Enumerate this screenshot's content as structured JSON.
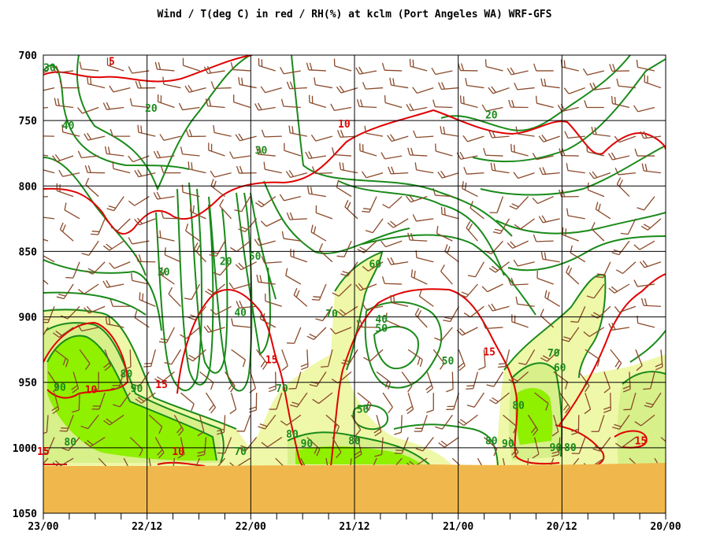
{
  "chart_data": {
    "type": "time-height cross section",
    "title": "Wind / T(deg C) in red / RH(%) at kclm (Port Angeles WA)  WRF-GFS",
    "y_axis": {
      "unit": "hPa",
      "range": [
        700,
        1050
      ],
      "ticks": [
        "700",
        "750",
        "800",
        "850",
        "900",
        "950",
        "1000",
        "1050"
      ]
    },
    "x_axis": {
      "direction": "time decreasing to the right",
      "range": [
        "23/00",
        "20/00"
      ],
      "ticks": [
        "23/00",
        "22/12",
        "22/00",
        "21/12",
        "21/00",
        "20/12",
        "20/00"
      ]
    },
    "grid": true,
    "colors": {
      "rh": "#1a8a1a",
      "temperature": "#e00000",
      "wind": "#8a4a2a",
      "rh_70_fill": "#eef8a8",
      "rh_80_fill": "#d7f08a",
      "rh_90_fill": "#8ff000",
      "ground": "#f0b84c"
    },
    "temperature_contours_degC": [
      5,
      10,
      15
    ],
    "temperature_labels": [
      {
        "text": "5",
        "time": 22.67,
        "p": 705
      },
      {
        "text": "10",
        "time": 21.55,
        "p": 753
      },
      {
        "text": "15",
        "time": 21.9,
        "p": 933
      },
      {
        "text": "10",
        "time": 22.77,
        "p": 956
      },
      {
        "text": "15",
        "time": 22.43,
        "p": 952
      },
      {
        "text": "15",
        "time": 20.85,
        "p": 927
      },
      {
        "text": "15",
        "time": 20.12,
        "p": 995
      },
      {
        "text": "15",
        "time": 23.0,
        "p": 1003
      },
      {
        "text": "10",
        "time": 22.35,
        "p": 1003
      }
    ],
    "rh_contours_pct": [
      20,
      30,
      40,
      50,
      60,
      70,
      80,
      90
    ],
    "rh_labels": [
      {
        "text": "30",
        "time": 22.97,
        "p": 710
      },
      {
        "text": "20",
        "time": 22.48,
        "p": 741
      },
      {
        "text": "20",
        "time": 20.84,
        "p": 746
      },
      {
        "text": "40",
        "time": 22.88,
        "p": 754
      },
      {
        "text": "30",
        "time": 21.95,
        "p": 773
      },
      {
        "text": "30",
        "time": 22.42,
        "p": 866
      },
      {
        "text": "20",
        "time": 22.12,
        "p": 858
      },
      {
        "text": "50",
        "time": 21.98,
        "p": 854
      },
      {
        "text": "60",
        "time": 21.4,
        "p": 860
      },
      {
        "text": "40",
        "time": 22.05,
        "p": 897
      },
      {
        "text": "70",
        "time": 21.61,
        "p": 898
      },
      {
        "text": "40",
        "time": 21.37,
        "p": 902
      },
      {
        "text": "50",
        "time": 21.37,
        "p": 909
      },
      {
        "text": "50",
        "time": 21.05,
        "p": 934
      },
      {
        "text": "60",
        "time": 20.51,
        "p": 939
      },
      {
        "text": "70",
        "time": 20.54,
        "p": 928
      },
      {
        "text": "80",
        "time": 22.6,
        "p": 944
      },
      {
        "text": "90",
        "time": 22.92,
        "p": 954
      },
      {
        "text": "90",
        "time": 22.55,
        "p": 955
      },
      {
        "text": "70",
        "time": 21.85,
        "p": 955
      },
      {
        "text": "80",
        "time": 20.71,
        "p": 968
      },
      {
        "text": "50",
        "time": 21.46,
        "p": 971
      },
      {
        "text": "80",
        "time": 21.8,
        "p": 990
      },
      {
        "text": "90",
        "time": 21.73,
        "p": 997
      },
      {
        "text": "80",
        "time": 21.5,
        "p": 995
      },
      {
        "text": "90",
        "time": 20.76,
        "p": 997
      },
      {
        "text": "80",
        "time": 20.84,
        "p": 995
      },
      {
        "text": "90",
        "time": 20.53,
        "p": 1000
      },
      {
        "text": "80",
        "time": 20.46,
        "p": 1000
      },
      {
        "text": "80",
        "time": 22.87,
        "p": 996
      },
      {
        "text": "70",
        "time": 22.05,
        "p": 1003
      }
    ],
    "wind_barbs_row_levels_hPa": [
      712,
      725,
      740,
      762,
      777,
      790,
      808,
      825,
      842,
      858,
      875,
      892,
      908,
      925,
      942,
      958,
      975,
      992,
      1008
    ],
    "surface_pressure_approx_hPa": 1008
  }
}
